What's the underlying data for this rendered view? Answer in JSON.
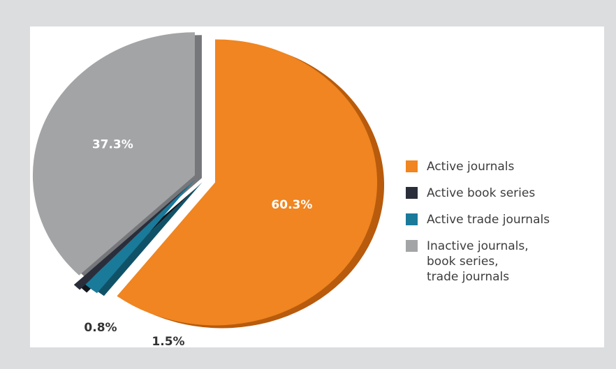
{
  "chart_data": {
    "type": "pie",
    "slices": [
      {
        "label": "Active journals",
        "value": 60.3,
        "value_label": "60.3%",
        "color": "#f08521",
        "side_color": "#b85b0c",
        "label_color": "#ffffff"
      },
      {
        "label": "Active trade journals",
        "value": 1.5,
        "value_label": "1.5%",
        "color": "#1a7a9a",
        "side_color": "#0f5268",
        "label_color": "#333333"
      },
      {
        "label": "Active book series",
        "value": 0.8,
        "value_label": "0.8%",
        "color": "#2a2e3b",
        "side_color": "#14161d",
        "label_color": "#333333"
      },
      {
        "label": "Inactive journals,\nbook series,\ntrade journals",
        "value": 37.3,
        "value_label": "37.3%",
        "color": "#a3a4a6",
        "side_color": "#76777a",
        "label_color": "#ffffff"
      }
    ],
    "legend": [
      {
        "label": "Active journals",
        "color": "#f08521"
      },
      {
        "label": "Active book series",
        "color": "#2a2e3b"
      },
      {
        "label": "Active trade journals",
        "color": "#1a7a9a"
      },
      {
        "label": "Inactive journals,\nbook series,\ntrade journals",
        "color": "#a3a4a6"
      }
    ],
    "legend_position": "right"
  }
}
